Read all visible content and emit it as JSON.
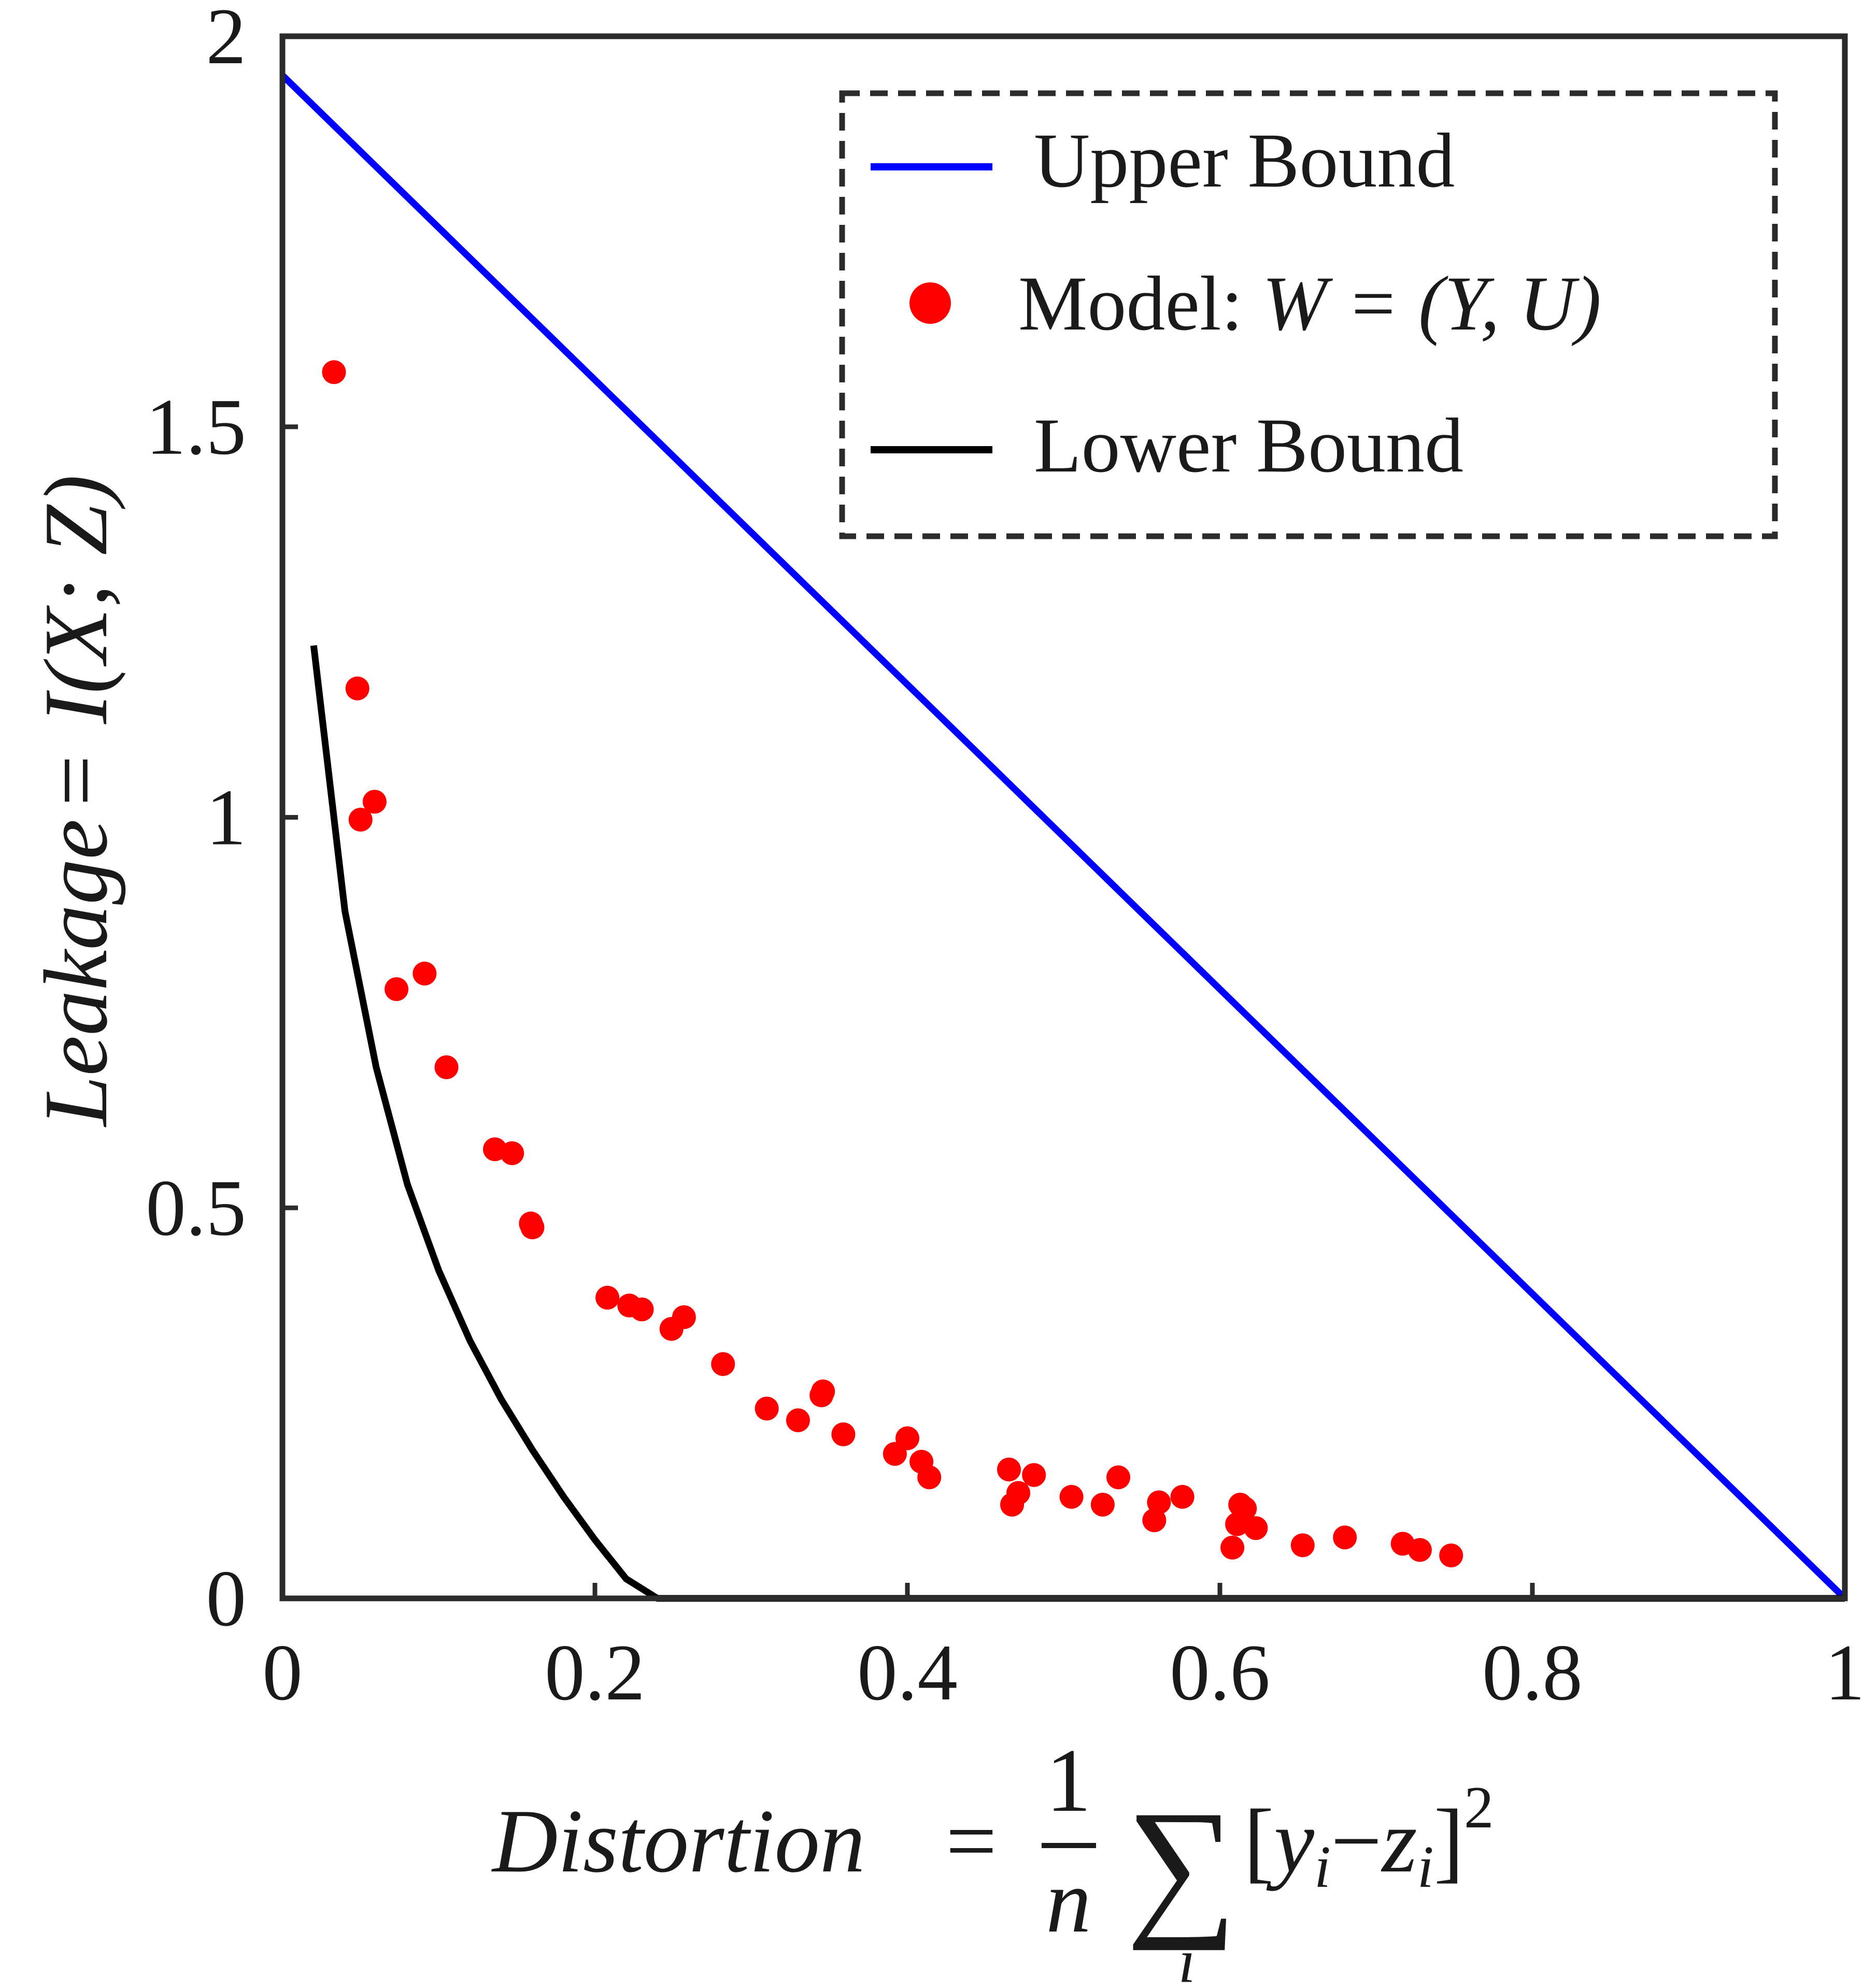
{
  "chart_data": {
    "type": "scatter",
    "title": "",
    "xlabel": {
      "lead": "Distortion",
      "eq": "=",
      "frac_num": "1",
      "frac_den": "n",
      "sum_symbol": "∑",
      "sum_index": "i",
      "term_open": "[",
      "y_var": "y",
      "y_sub": "i",
      "minus": "−",
      "z_var": "z",
      "z_sub": "i",
      "term_close": "]",
      "power": "2"
    },
    "ylabel": {
      "lead": "Leakage",
      "eq": "=",
      "func": "I",
      "arg": "(X; Z)"
    },
    "xlim": [
      0,
      1
    ],
    "ylim": [
      0,
      2
    ],
    "xticks": [
      "0",
      "0.2",
      "0.4",
      "0.6",
      "0.8",
      "1"
    ],
    "yticks": [
      "0",
      "0.5",
      "1",
      "1.5",
      "2"
    ],
    "grid": false,
    "legend_position": "top-right",
    "legend": [
      {
        "label": "Upper Bound",
        "marker": "line",
        "color": "#0000ff"
      },
      {
        "label_text": "Model: ",
        "label_math": "W = (Y, U)",
        "marker": "dot",
        "color": "#ff0000"
      },
      {
        "label": "Lower Bound",
        "marker": "line",
        "color": "#000000"
      }
    ],
    "series": [
      {
        "name": "Upper Bound",
        "kind": "line",
        "color": "#0000ff",
        "x": [
          0,
          1
        ],
        "y": [
          1.95,
          0
        ]
      },
      {
        "name": "Model: W = (Y, U)",
        "kind": "scatter",
        "color": "#ff0000",
        "x": [
          0.033,
          0.048,
          0.05,
          0.059,
          0.073,
          0.091,
          0.105,
          0.136,
          0.147,
          0.159,
          0.16,
          0.208,
          0.222,
          0.23,
          0.249,
          0.257,
          0.282,
          0.31,
          0.33,
          0.345,
          0.346,
          0.359,
          0.392,
          0.4,
          0.409,
          0.414,
          0.465,
          0.467,
          0.471,
          0.481,
          0.505,
          0.525,
          0.535,
          0.558,
          0.561,
          0.576,
          0.608,
          0.611,
          0.613,
          0.616,
          0.623,
          0.653,
          0.68,
          0.717,
          0.728,
          0.748
        ],
        "y": [
          1.57,
          1.165,
          0.997,
          1.02,
          0.78,
          0.8,
          0.68,
          0.575,
          0.57,
          0.48,
          0.475,
          0.385,
          0.375,
          0.37,
          0.345,
          0.36,
          0.3,
          0.243,
          0.228,
          0.26,
          0.265,
          0.21,
          0.185,
          0.205,
          0.175,
          0.155,
          0.165,
          0.12,
          0.135,
          0.158,
          0.13,
          0.12,
          0.155,
          0.1,
          0.123,
          0.13,
          0.065,
          0.095,
          0.12,
          0.115,
          0.09,
          0.068,
          0.078,
          0.07,
          0.062,
          0.055
        ]
      },
      {
        "name": "Lower Bound",
        "kind": "line",
        "color": "#000000",
        "x": [
          0.02,
          0.04,
          0.06,
          0.08,
          0.1,
          0.12,
          0.14,
          0.16,
          0.18,
          0.2,
          0.22,
          0.24,
          0.27,
          0.4,
          0.6,
          0.8,
          1.0
        ],
        "y": [
          1.22,
          0.88,
          0.68,
          0.53,
          0.42,
          0.33,
          0.255,
          0.19,
          0.13,
          0.075,
          0.025,
          0,
          0,
          0,
          0,
          0,
          0
        ]
      }
    ]
  }
}
